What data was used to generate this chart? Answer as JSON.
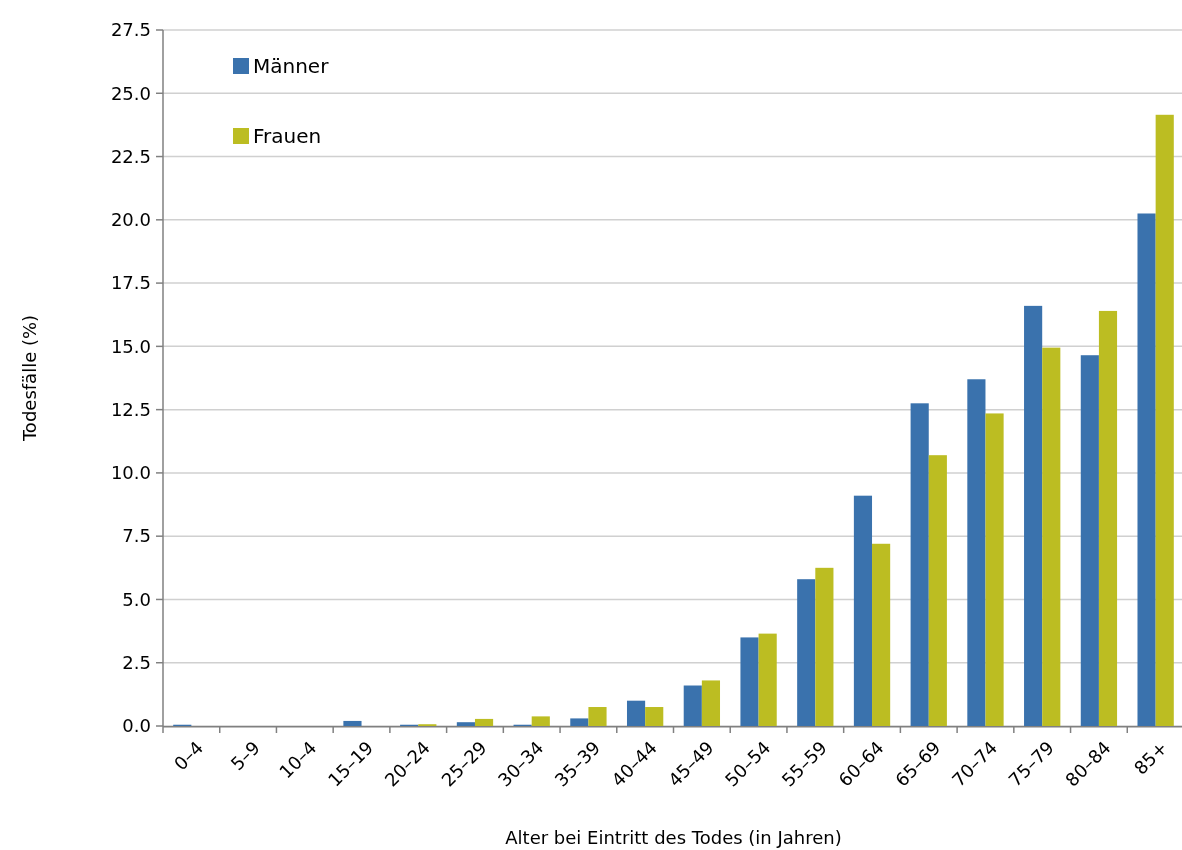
{
  "chart_data": {
    "type": "bar",
    "xlabel": "Alter bei Eintritt des Todes (in Jahren)",
    "ylabel": "Todesfälle (%)",
    "categories": [
      "0–4",
      "5–9",
      "10–4",
      "15–19",
      "20–24",
      "25–29",
      "30–34",
      "35–39",
      "40–44",
      "45–49",
      "50–54",
      "55–59",
      "60–64",
      "65–69",
      "70–74",
      "75–79",
      "80–84",
      "85+"
    ],
    "series": [
      {
        "name": "Männer",
        "color": "#3a72ad",
        "values": [
          0.05,
          0,
          0,
          0.2,
          0.05,
          0.15,
          0.05,
          0.3,
          1.0,
          1.6,
          3.5,
          5.8,
          9.1,
          12.75,
          13.7,
          16.6,
          14.65,
          20.25
        ]
      },
      {
        "name": "Frauen",
        "color": "#bcbd22",
        "values": [
          0,
          0,
          0,
          0,
          0.07,
          0.28,
          0.38,
          0.75,
          0.75,
          1.8,
          3.65,
          6.25,
          7.2,
          10.7,
          12.35,
          14.95,
          16.4,
          24.15
        ]
      }
    ],
    "ylim": [
      0,
      27.5
    ],
    "yticks": [
      {
        "value": 0,
        "label": "0.0"
      },
      {
        "value": 2.5,
        "label": "2.5"
      },
      {
        "value": 5,
        "label": "5.0"
      },
      {
        "value": 7.5,
        "label": "7.5"
      },
      {
        "value": 10,
        "label": "10.0"
      },
      {
        "value": 12.5,
        "label": "12.5"
      },
      {
        "value": 15,
        "label": "15.0"
      },
      {
        "value": 17.5,
        "label": "17.5"
      },
      {
        "value": 20,
        "label": "20.0"
      },
      {
        "value": 22.5,
        "label": "22.5"
      },
      {
        "value": 25,
        "label": "25.0"
      },
      {
        "value": 27.5,
        "label": "27.5"
      }
    ],
    "grid": "y",
    "legend": "top left"
  }
}
